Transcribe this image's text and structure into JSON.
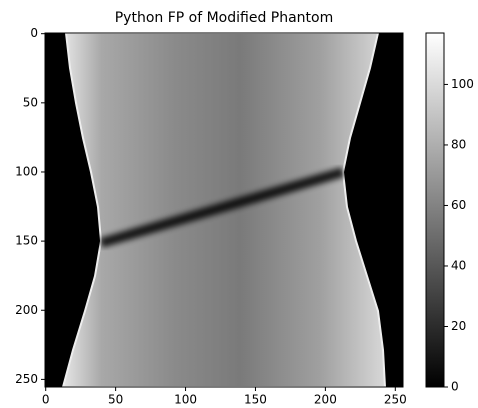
{
  "chart_data": {
    "type": "image",
    "title": "Python FP of Modified Phantom",
    "xlim": [
      -0.5,
      255.5
    ],
    "ylim": [
      255.5,
      -0.5
    ],
    "xticks": [
      0,
      50,
      100,
      150,
      200,
      250
    ],
    "yticks": [
      0,
      50,
      100,
      150,
      200,
      250
    ],
    "colorbar": {
      "lim": [
        0,
        117
      ],
      "ticks": [
        0,
        20,
        40,
        60,
        80,
        100
      ],
      "cmap": "gray"
    }
  }
}
